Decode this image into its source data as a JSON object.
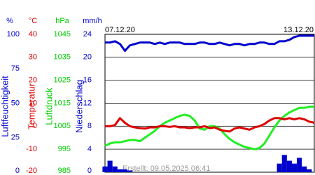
{
  "chart_data": {
    "type": "line",
    "start_label": "07.12.20",
    "end_label": "13.12.20",
    "footer": "Erstellt: 09.05.2025 06:41",
    "xlim": [
      0,
      42
    ],
    "grid": true,
    "axes": [
      {
        "unit": "%",
        "label": "Luftfeuchtigkeit",
        "color": "#0000cc",
        "ylim": [
          0,
          100
        ],
        "yticks": [
          0,
          25,
          50,
          75,
          100
        ]
      },
      {
        "unit": "°C",
        "label": "Temperatur",
        "color": "#dd0000",
        "ylim": [
          -20,
          40
        ],
        "yticks": [
          -20,
          -10,
          0,
          10,
          20,
          30,
          40
        ]
      },
      {
        "unit": "hPa",
        "label": "Luftdruck",
        "color": "#00cc00",
        "ylim": [
          985,
          1045
        ],
        "yticks": [
          985,
          995,
          1005,
          1015,
          1025,
          1035,
          1045
        ]
      },
      {
        "unit": "mm/h",
        "label": "Niederschlag",
        "color": "#0000cc",
        "ylim": [
          0,
          24
        ],
        "yticks": [
          0,
          4,
          8,
          12,
          16,
          20,
          24
        ]
      }
    ],
    "series": [
      {
        "type": "bar",
        "axis": 3,
        "color": "#0000cc",
        "values": [
          1,
          2,
          1,
          0.5,
          0.5,
          0.3,
          0,
          0,
          0,
          0,
          0,
          0,
          0,
          0,
          0,
          0,
          0,
          0,
          0,
          0,
          0,
          0,
          0,
          0,
          0,
          0,
          0,
          0,
          0,
          0,
          0,
          0,
          0,
          0,
          0,
          1.5,
          3,
          2,
          1.5,
          2.5,
          1,
          0.5,
          0
        ]
      },
      {
        "type": "line",
        "axis": 2,
        "color": "#22ee22",
        "values": [
          996.5,
          997.5,
          998,
          998,
          998.5,
          999,
          999,
          998.5,
          1000,
          1001.5,
          1003,
          1005,
          1006.5,
          1007.5,
          1008.5,
          1009.5,
          1010,
          1009.5,
          1007.5,
          1004,
          1003.5,
          1005,
          1005,
          1004,
          1001.5,
          999.5,
          998,
          997,
          996,
          995.5,
          995,
          995.5,
          997.5,
          1001,
          1004.5,
          1007.5,
          1009.5,
          1011,
          1012,
          1013,
          1013,
          1013.5,
          1013.5
        ]
      },
      {
        "type": "line",
        "axis": 1,
        "color": "#dd0000",
        "values": [
          0,
          0,
          0.5,
          3.5,
          1.5,
          0,
          -0.5,
          -0.8,
          -1,
          -0.5,
          -0.5,
          0,
          0,
          -0.3,
          0,
          -0.5,
          -0.5,
          -0.8,
          -0.5,
          -0.5,
          0,
          -0.8,
          -0.5,
          -1.5,
          -2,
          -2.3,
          -1,
          -0.5,
          -1,
          -1.5,
          -0.5,
          0,
          1,
          2.5,
          3.5,
          3.5,
          3,
          3.5,
          3,
          3.5,
          3,
          2,
          1.5
        ]
      },
      {
        "type": "line",
        "axis": 0,
        "color": "#0000cc",
        "values": [
          94,
          94,
          95,
          93,
          88,
          92,
          93,
          94,
          94,
          94,
          93,
          94,
          93,
          94,
          94,
          94,
          93,
          93,
          93,
          94,
          94,
          93,
          93,
          94,
          93,
          92,
          93,
          93,
          92,
          93,
          93,
          94,
          94,
          93,
          93,
          95,
          95,
          96,
          98,
          99,
          99,
          99,
          99
        ]
      }
    ]
  }
}
